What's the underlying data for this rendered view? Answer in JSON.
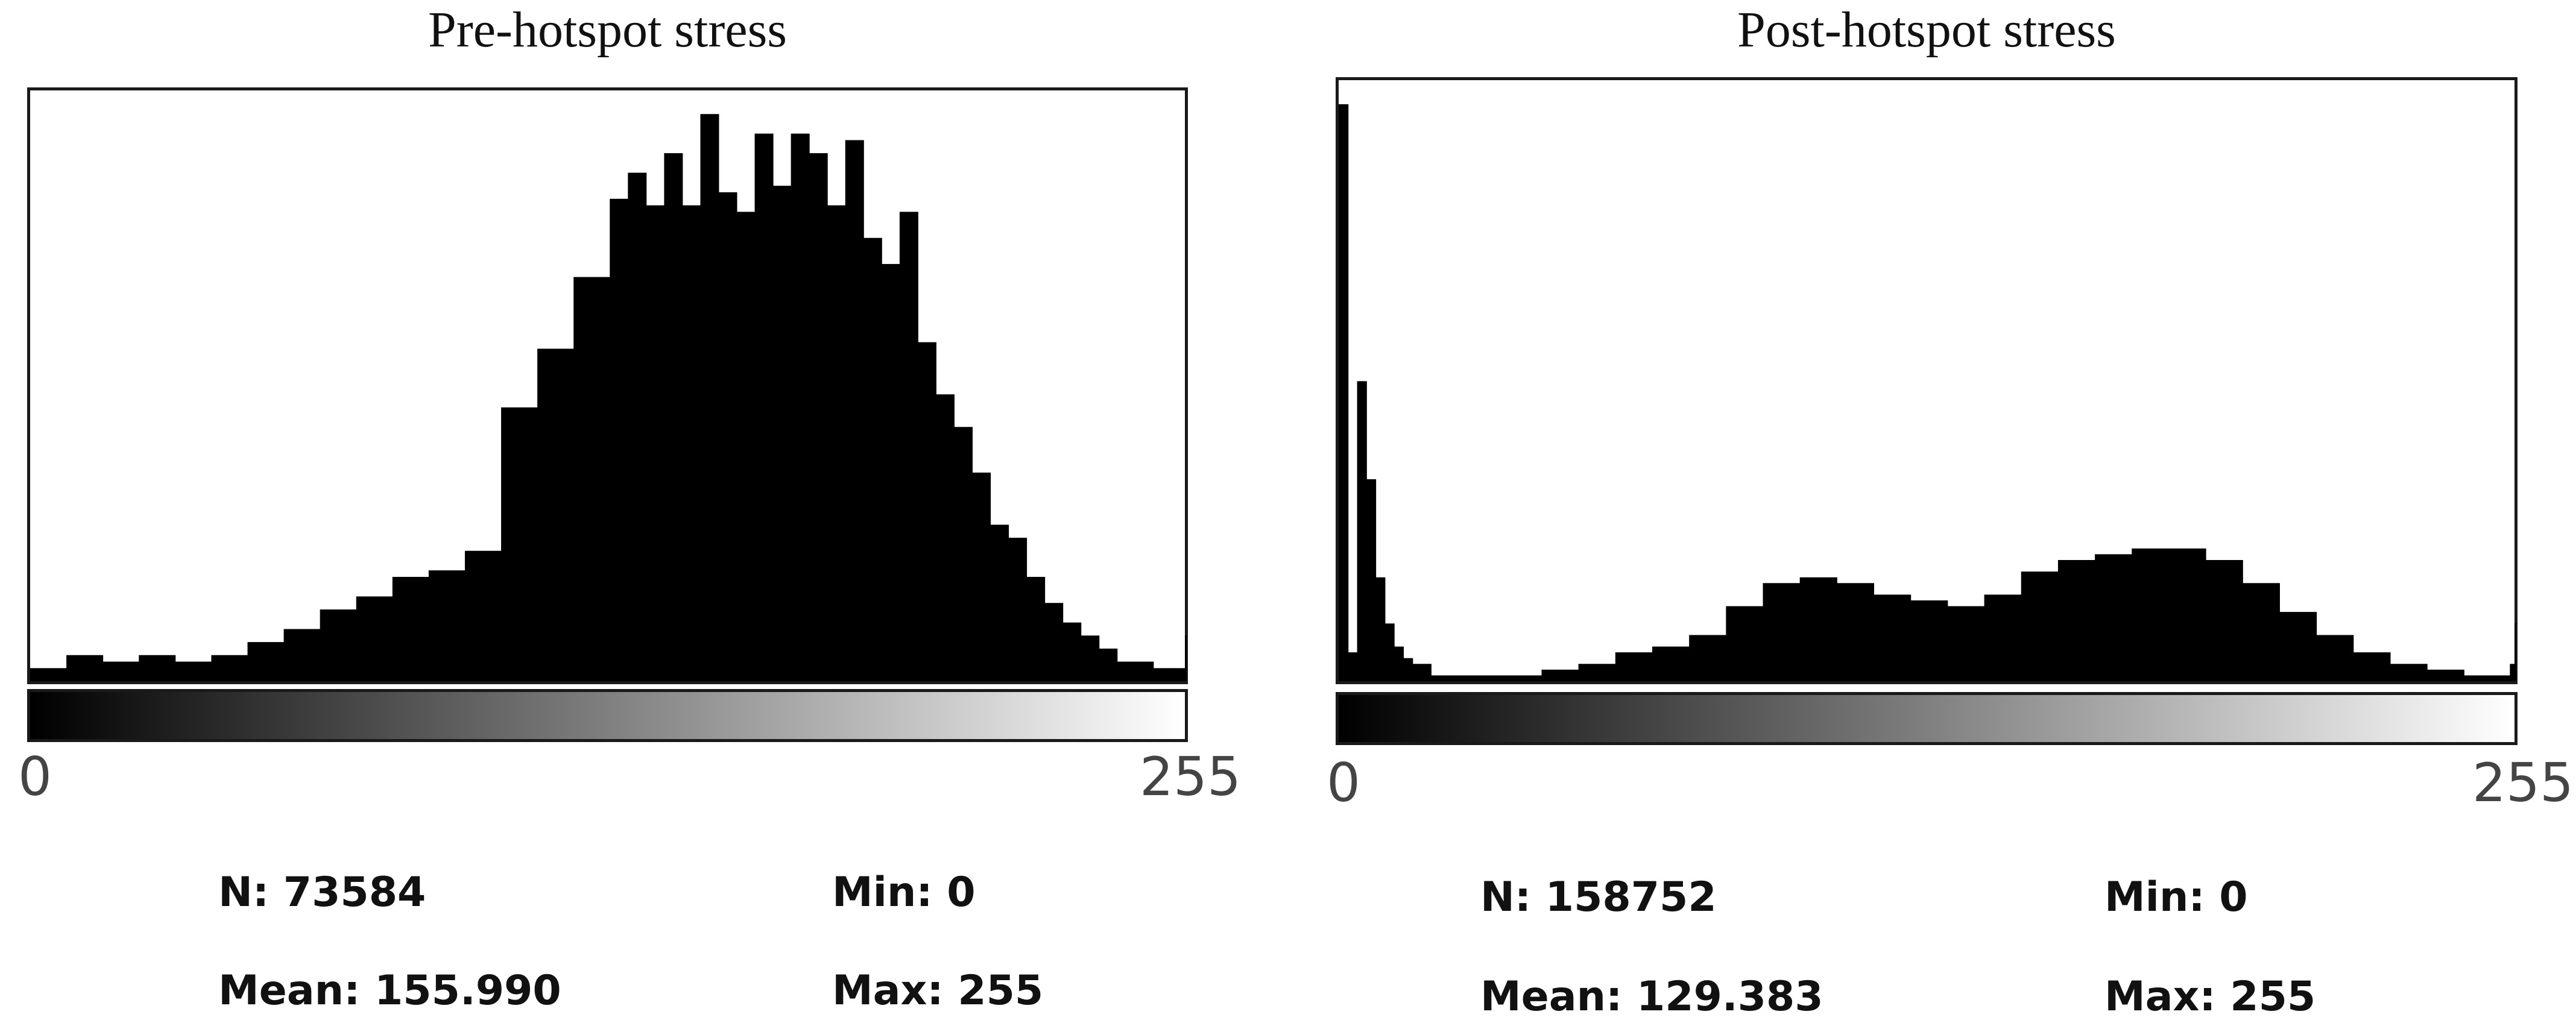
{
  "chart_data": [
    {
      "type": "bar",
      "title": "Pre-hotspot stress",
      "xlabel": "",
      "ylabel": "",
      "xlim": [
        0,
        255
      ],
      "x_tick_labels": [
        "0",
        "255"
      ],
      "grid": false,
      "bar_color": "#000000",
      "stats": {
        "n": "N: 73584",
        "mean": "Mean: 155.990",
        "min": "Min: 0",
        "max": "Max: 255"
      },
      "x": [
        0,
        8,
        16,
        24,
        32,
        40,
        48,
        56,
        64,
        72,
        80,
        88,
        96,
        104,
        112,
        120,
        128,
        132,
        136,
        140,
        144,
        148,
        152,
        156,
        160,
        164,
        168,
        172,
        176,
        180,
        184,
        188,
        192,
        196,
        200,
        204,
        208,
        212,
        216,
        220,
        224,
        228,
        232,
        236,
        240,
        244,
        248,
        252,
        255
      ],
      "values": [
        2,
        4,
        3,
        4,
        3,
        4,
        6,
        8,
        11,
        13,
        16,
        17,
        20,
        42,
        51,
        62,
        74,
        78,
        73,
        81,
        73,
        87,
        75,
        72,
        84,
        76,
        84,
        81,
        73,
        83,
        68,
        64,
        72,
        52,
        44,
        39,
        32,
        24,
        22,
        16,
        12,
        9,
        7,
        5,
        3,
        3,
        2,
        2,
        7
      ]
    },
    {
      "type": "bar",
      "title": "Post-hotspot stress",
      "xlabel": "",
      "ylabel": "",
      "xlim": [
        0,
        255
      ],
      "x_tick_labels": [
        "0",
        "255"
      ],
      "grid": false,
      "bar_color": "#000000",
      "stats": {
        "n": "N: 158752",
        "mean": "Mean: 129.383",
        "min": "Min: 0",
        "max": "Max: 255"
      },
      "x": [
        0,
        2,
        4,
        6,
        8,
        10,
        12,
        14,
        16,
        20,
        24,
        30,
        36,
        44,
        52,
        60,
        68,
        76,
        84,
        92,
        100,
        108,
        116,
        124,
        132,
        140,
        148,
        156,
        164,
        172,
        180,
        188,
        196,
        204,
        212,
        220,
        228,
        236,
        244,
        250,
        254,
        255
      ],
      "values": [
        100,
        5,
        52,
        35,
        18,
        10,
        6,
        4,
        3,
        1,
        1,
        1,
        1,
        2,
        3,
        5,
        6,
        8,
        13,
        17,
        18,
        17,
        15,
        14,
        13,
        15,
        19,
        21,
        22,
        23,
        23,
        21,
        17,
        12,
        8,
        5,
        3,
        2,
        1,
        1,
        3,
        10
      ]
    }
  ]
}
